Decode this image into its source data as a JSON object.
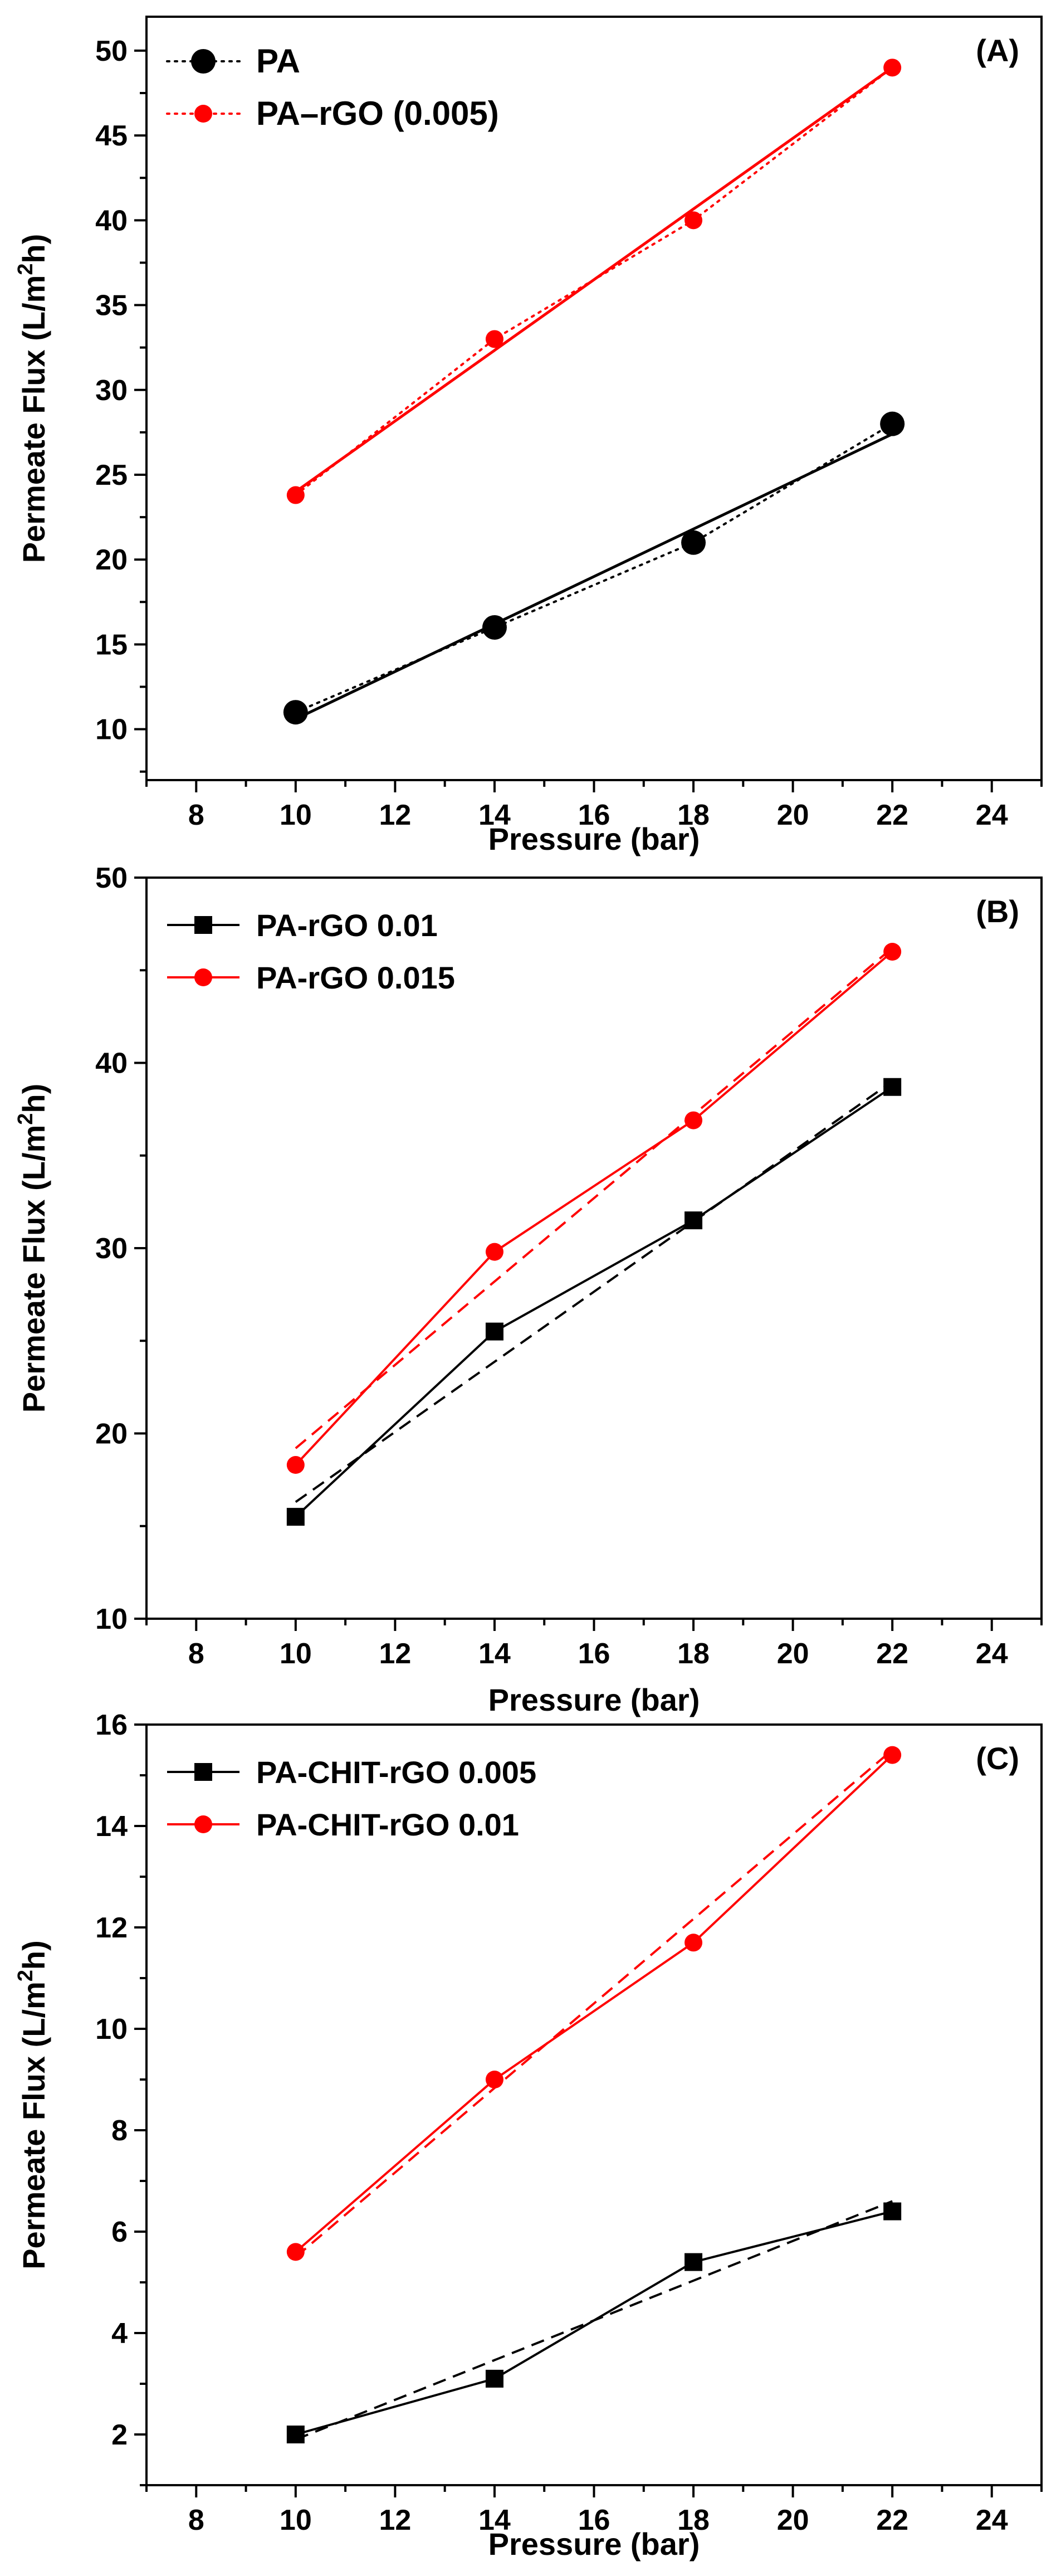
{
  "chart_data": [
    {
      "type": "line",
      "panel_label": "(A)",
      "xlabel": "Pressure (bar)",
      "ylabel_main": "Permeate Flux (L/m",
      "ylabel_sup": "2",
      "ylabel_tail": "h)",
      "xlim": [
        7,
        25
      ],
      "ylim": [
        7,
        52
      ],
      "xticks": [
        8,
        10,
        12,
        14,
        16,
        18,
        20,
        22,
        24
      ],
      "yticks": [
        10,
        15,
        20,
        25,
        30,
        35,
        40,
        45,
        50
      ],
      "x": [
        10,
        14,
        18,
        22
      ],
      "series": [
        {
          "name": "PA",
          "color": "#000000",
          "marker": "circle",
          "marker_size": "large",
          "line": "fit",
          "connector": "dotted",
          "values": [
            11,
            16,
            21,
            28
          ],
          "fit": [
            10.6,
            27.4
          ]
        },
        {
          "name": "PA–rGO (0.005)",
          "color": "#ff0000",
          "marker": "circle",
          "marker_size": "medium",
          "line": "fit",
          "connector": "dotted",
          "values": [
            23.8,
            33,
            40,
            49
          ],
          "fit": [
            24,
            49
          ]
        }
      ]
    },
    {
      "type": "line",
      "panel_label": "(B)",
      "xlabel": "Pressure (bar)",
      "ylabel_main": "Permeate Flux (L/m",
      "ylabel_sup": "2",
      "ylabel_tail": "h)",
      "xlim": [
        7,
        25
      ],
      "ylim": [
        10,
        50
      ],
      "xticks": [
        8,
        10,
        12,
        14,
        16,
        18,
        20,
        22,
        24
      ],
      "yticks": [
        10,
        20,
        30,
        40,
        50
      ],
      "x": [
        10,
        14,
        18,
        22
      ],
      "series": [
        {
          "name": "PA-rGO 0.01",
          "color": "#000000",
          "marker": "square",
          "marker_size": "medium",
          "line": "solid",
          "fit_style": "dashed",
          "values": [
            15.5,
            25.5,
            31.5,
            38.7
          ],
          "fit": [
            16.3,
            39
          ]
        },
        {
          "name": "PA-rGO 0.015",
          "color": "#ff0000",
          "marker": "circle",
          "marker_size": "medium",
          "line": "solid",
          "fit_style": "dashed",
          "values": [
            18.3,
            29.8,
            36.9,
            46
          ],
          "fit": [
            19.2,
            46.2
          ]
        }
      ]
    },
    {
      "type": "line",
      "panel_label": "(C)",
      "xlabel": "Pressure (bar)",
      "ylabel_main": "Permeate Flux (L/m",
      "ylabel_sup": "2",
      "ylabel_tail": "h)",
      "xlim": [
        7,
        25
      ],
      "ylim": [
        1,
        16
      ],
      "xticks": [
        8,
        10,
        12,
        14,
        16,
        18,
        20,
        22,
        24
      ],
      "yticks": [
        2,
        4,
        6,
        8,
        10,
        12,
        14,
        16
      ],
      "x": [
        10,
        14,
        18,
        22
      ],
      "series": [
        {
          "name": "PA-CHIT-rGO 0.005",
          "color": "#000000",
          "marker": "square",
          "marker_size": "medium",
          "line": "solid",
          "fit_style": "dashed",
          "values": [
            2.0,
            3.1,
            5.4,
            6.4
          ],
          "fit": [
            1.9,
            6.6
          ]
        },
        {
          "name": "PA-CHIT-rGO 0.01",
          "color": "#ff0000",
          "marker": "circle",
          "marker_size": "medium",
          "line": "solid",
          "fit_style": "dashed",
          "values": [
            5.6,
            9.0,
            11.7,
            15.4
          ],
          "fit": [
            5.5,
            15.5
          ]
        }
      ]
    }
  ]
}
